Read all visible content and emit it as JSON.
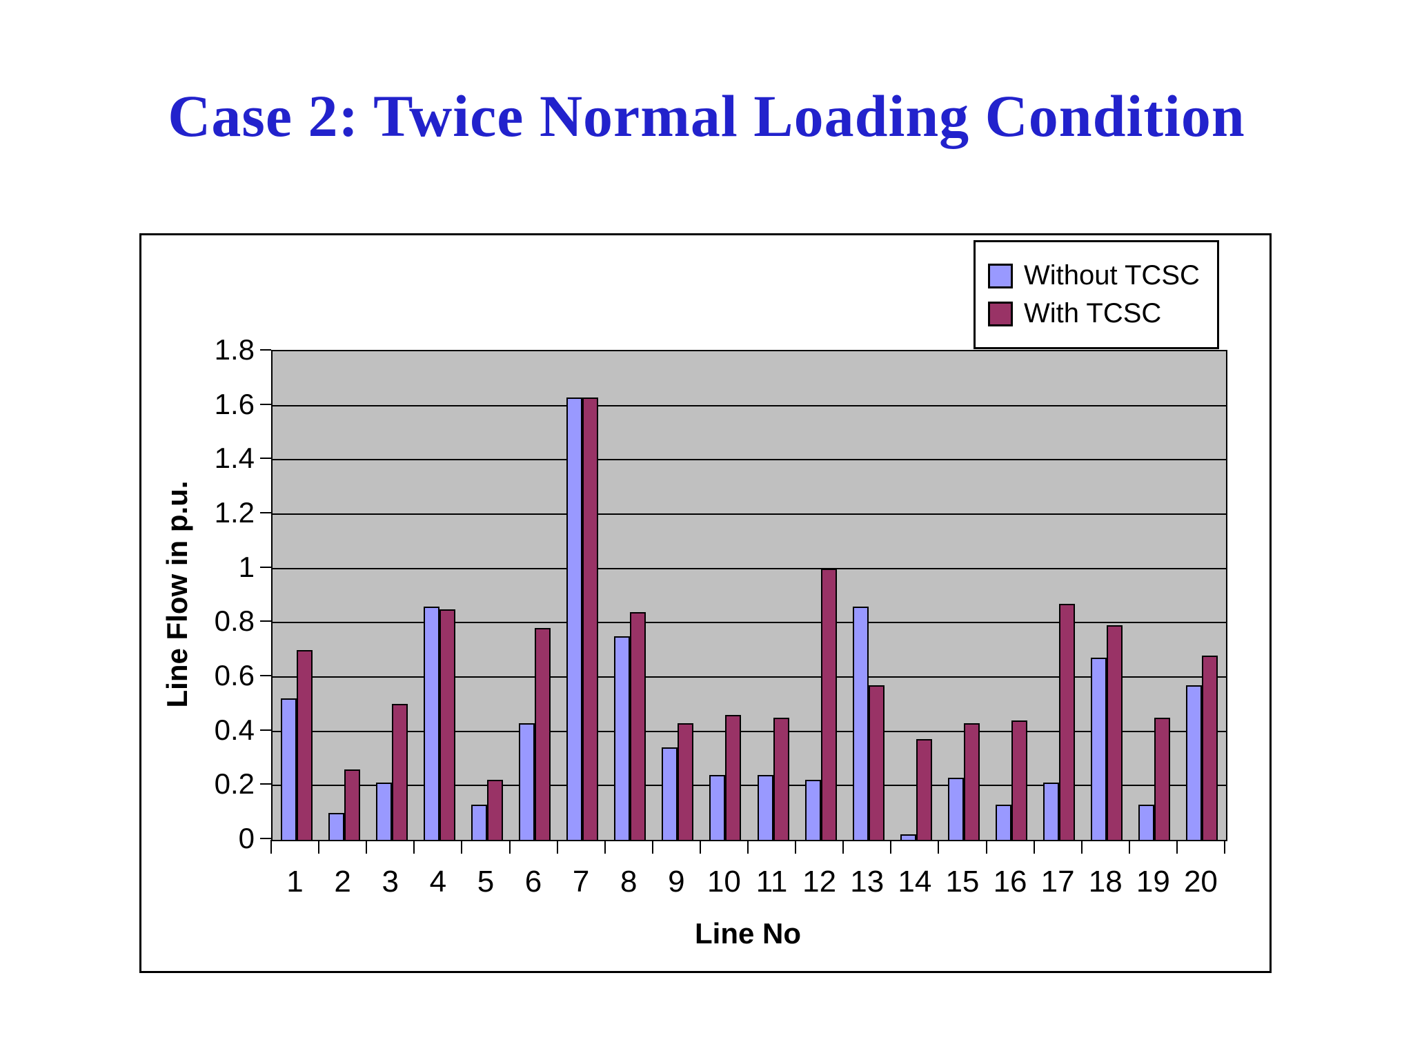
{
  "slide": {
    "title": "Case 2: Twice Normal Loading Condition",
    "title_color": "#2222cc"
  },
  "chart_data": {
    "type": "bar",
    "title": "",
    "xlabel": "Line No",
    "ylabel": "Line Flow in p.u.",
    "categories": [
      "1",
      "2",
      "3",
      "4",
      "5",
      "6",
      "7",
      "8",
      "9",
      "10",
      "11",
      "12",
      "13",
      "14",
      "15",
      "16",
      "17",
      "18",
      "19",
      "20"
    ],
    "series": [
      {
        "name": "Without TCSC",
        "color": "#9999ff",
        "values": [
          0.52,
          0.1,
          0.21,
          0.86,
          0.13,
          0.43,
          1.63,
          0.75,
          0.34,
          0.24,
          0.24,
          0.22,
          0.86,
          0.02,
          0.23,
          0.13,
          0.21,
          0.67,
          0.13,
          0.57
        ]
      },
      {
        "name": "With TCSC",
        "color": "#993366",
        "values": [
          0.7,
          0.26,
          0.5,
          0.85,
          0.22,
          0.78,
          1.63,
          0.84,
          0.43,
          0.46,
          0.45,
          1.0,
          0.57,
          0.37,
          0.43,
          0.44,
          0.87,
          0.79,
          0.45,
          0.68
        ]
      }
    ],
    "ylim": [
      0,
      1.8
    ],
    "ytick_step": 0.2,
    "ytick_labels": [
      "0",
      "0.2",
      "0.4",
      "0.6",
      "0.8",
      "1",
      "1.2",
      "1.4",
      "1.6",
      "1.8"
    ],
    "grid": true,
    "gridline_color": "#000000",
    "plot_bg": "#c0c0c0",
    "legend_position": "top-right"
  }
}
